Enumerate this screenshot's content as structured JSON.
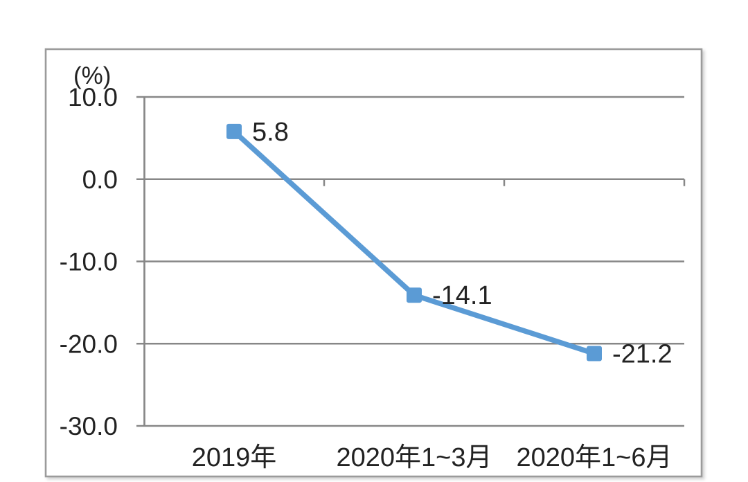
{
  "chart_data": {
    "type": "line",
    "title": "",
    "unit_label": "(%)",
    "xlabel": "",
    "ylabel": "(%)",
    "categories": [
      "2019年",
      "2020年1~3月",
      "2020年1~6月"
    ],
    "series": [
      {
        "values": [
          5.8,
          -14.1,
          -21.2
        ]
      }
    ],
    "point_labels": [
      "5.8",
      "-14.1",
      "-21.2"
    ],
    "yticks": [
      "10.0",
      "0.0",
      "-10.0",
      "-20.0",
      "-30.0"
    ],
    "ytick_values": [
      10.0,
      0.0,
      -10.0,
      -20.0,
      -30.0
    ],
    "ylim": [
      -30.0,
      10.0
    ],
    "grid": "horizontal-on",
    "legend": "none",
    "colors": {
      "line": "#5B9BD5",
      "marker": "#5B9BD5",
      "gridline": "#878787",
      "border": "#9b9b9b",
      "text": "#222222"
    },
    "marker_shape": "square"
  }
}
